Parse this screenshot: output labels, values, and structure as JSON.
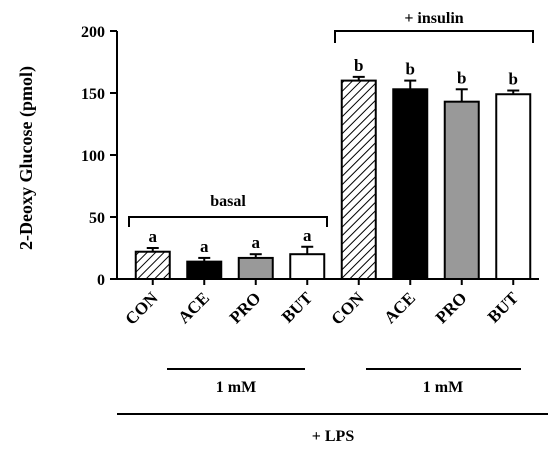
{
  "chart_data": {
    "type": "bar",
    "ylabel": "2-Deoxy Glucose (pmol)",
    "ylim": [
      0,
      200
    ],
    "yticks": [
      0,
      50,
      100,
      150,
      200
    ],
    "categories": [
      "CON",
      "ACE",
      "PRO",
      "BUT",
      "CON",
      "ACE",
      "PRO",
      "BUT"
    ],
    "values": [
      22,
      14,
      17,
      20,
      160,
      153,
      143,
      149
    ],
    "errors": [
      3,
      3,
      3,
      6,
      3,
      7,
      10,
      3
    ],
    "significance": [
      "a",
      "a",
      "a",
      "a",
      "b",
      "b",
      "b",
      "b"
    ],
    "fills": [
      "hatched",
      "black",
      "gray",
      "white",
      "hatched",
      "black",
      "gray",
      "white"
    ],
    "colors": {
      "black": "#000000",
      "gray": "#999999",
      "white": "#ffffff",
      "hatch": "#000000"
    },
    "groups": [
      {
        "label": "basal",
        "range": [
          0,
          3
        ]
      },
      {
        "label": "+ insulin",
        "range": [
          4,
          7
        ]
      }
    ],
    "bottom_labels": {
      "conc_left": "1 mM",
      "conc_right": "1 mM",
      "lps": "+ LPS"
    },
    "grid": false,
    "legend": "none"
  }
}
